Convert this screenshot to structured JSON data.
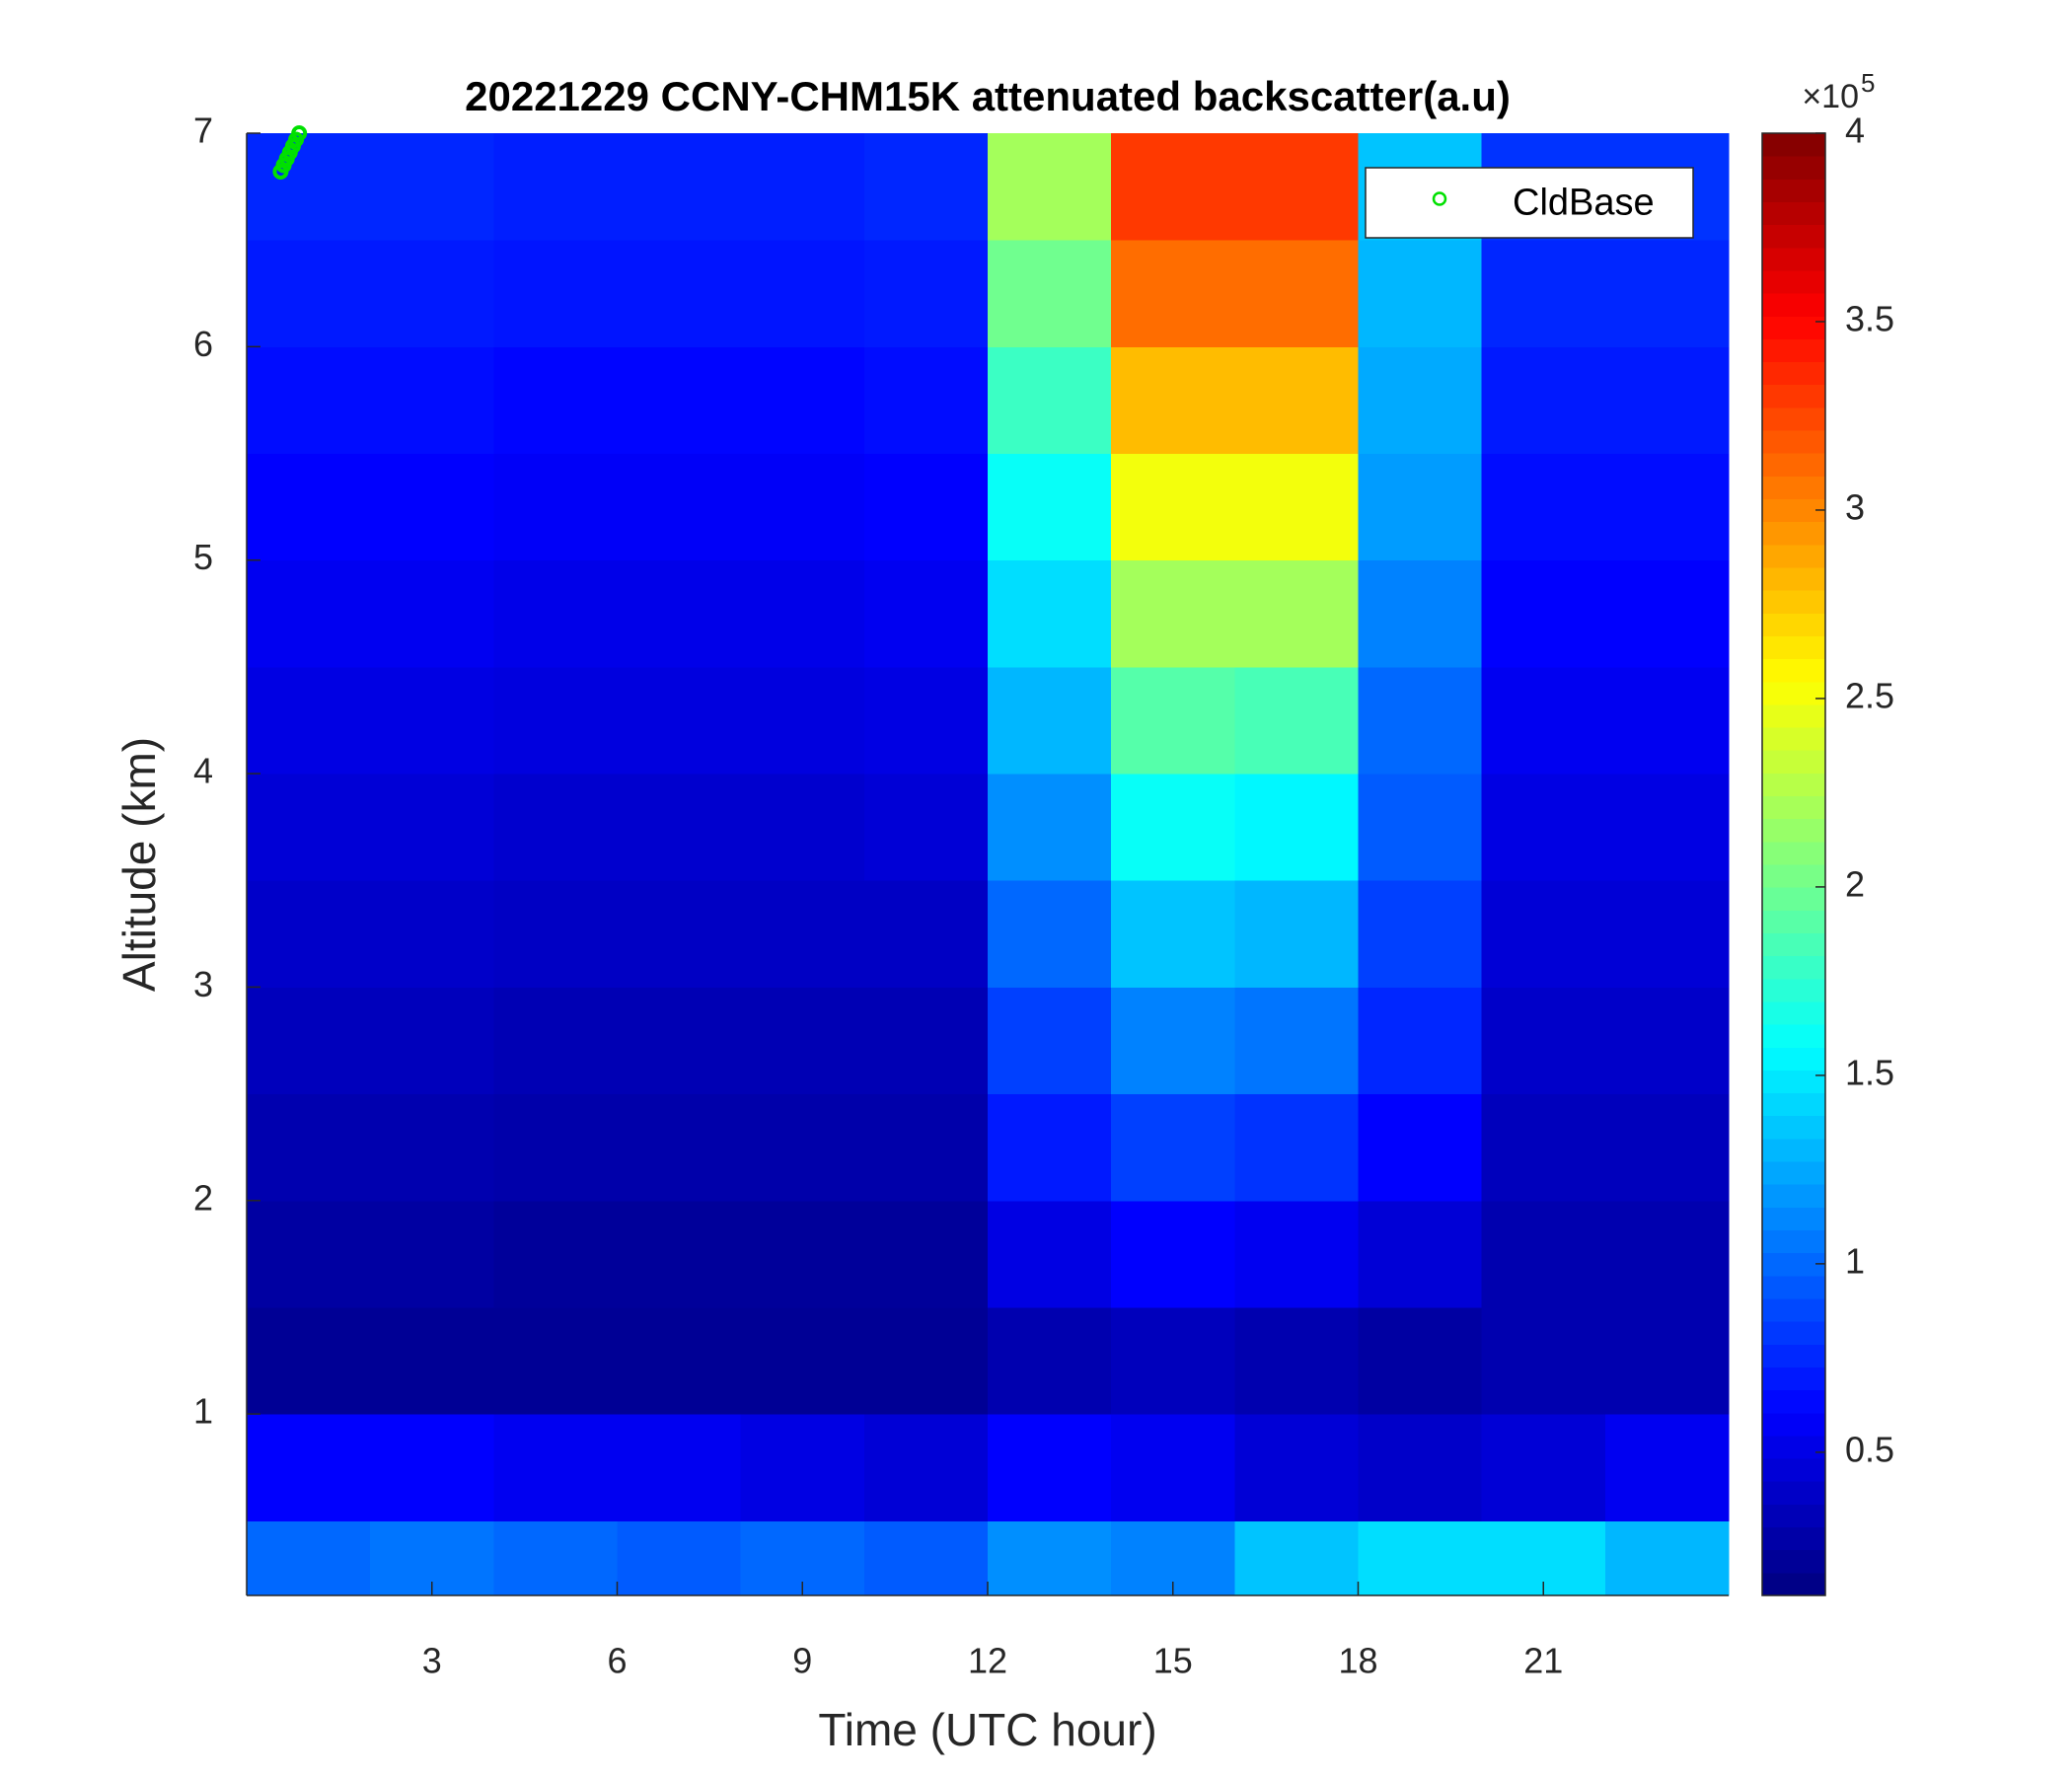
{
  "chart_data": {
    "type": "heatmap",
    "title": "20221229 CCNY-CHM15K attenuated backscatter(a.u)",
    "x_label": "Time (UTC hour)",
    "y_label": "Altitude (km)",
    "xlim": [
      0,
      24
    ],
    "xticks": [
      3,
      6,
      9,
      12,
      15,
      18,
      21
    ],
    "ylim": [
      0.15,
      7
    ],
    "yticks": [
      1,
      2,
      3,
      4,
      5,
      6,
      7
    ],
    "x_bins": [
      0,
      2,
      4,
      6,
      8,
      10,
      12,
      14,
      16,
      18,
      20,
      22,
      24
    ],
    "y_bins": [
      0.15,
      0.5,
      1,
      1.5,
      2,
      2.5,
      3,
      3.5,
      4,
      4.5,
      5,
      5.5,
      6,
      6.5,
      7
    ],
    "z": [
      [
        1.0,
        1.05,
        1.0,
        0.95,
        1.0,
        0.95,
        1.15,
        1.1,
        1.35,
        1.45,
        1.45,
        1.3
      ],
      [
        0.6,
        0.6,
        0.55,
        0.55,
        0.5,
        0.45,
        0.6,
        0.55,
        0.45,
        0.4,
        0.45,
        0.55
      ],
      [
        0.2,
        0.2,
        0.2,
        0.2,
        0.2,
        0.2,
        0.3,
        0.35,
        0.3,
        0.25,
        0.3,
        0.3
      ],
      [
        0.25,
        0.25,
        0.22,
        0.22,
        0.22,
        0.22,
        0.5,
        0.6,
        0.55,
        0.45,
        0.3,
        0.3
      ],
      [
        0.3,
        0.3,
        0.28,
        0.28,
        0.28,
        0.28,
        0.7,
        0.85,
        0.8,
        0.6,
        0.35,
        0.35
      ],
      [
        0.35,
        0.35,
        0.32,
        0.32,
        0.32,
        0.32,
        0.85,
        1.1,
        1.05,
        0.75,
        0.4,
        0.4
      ],
      [
        0.4,
        0.4,
        0.38,
        0.38,
        0.38,
        0.38,
        1.0,
        1.35,
        1.3,
        0.85,
        0.45,
        0.45
      ],
      [
        0.45,
        0.45,
        0.42,
        0.42,
        0.42,
        0.45,
        1.15,
        1.6,
        1.55,
        0.95,
        0.5,
        0.5
      ],
      [
        0.5,
        0.5,
        0.48,
        0.48,
        0.48,
        0.5,
        1.3,
        1.9,
        1.85,
        1.0,
        0.55,
        0.55
      ],
      [
        0.55,
        0.55,
        0.52,
        0.52,
        0.52,
        0.55,
        1.45,
        2.2,
        2.2,
        1.1,
        0.6,
        0.6
      ],
      [
        0.6,
        0.6,
        0.58,
        0.58,
        0.58,
        0.6,
        1.6,
        2.5,
        2.5,
        1.2,
        0.65,
        0.65
      ],
      [
        0.65,
        0.65,
        0.62,
        0.62,
        0.62,
        0.65,
        1.8,
        2.8,
        2.8,
        1.25,
        0.7,
        0.7
      ],
      [
        0.7,
        0.7,
        0.68,
        0.68,
        0.68,
        0.7,
        2.0,
        3.1,
        3.1,
        1.3,
        0.75,
        0.75
      ],
      [
        0.75,
        0.75,
        0.72,
        0.72,
        0.72,
        0.75,
        2.2,
        3.3,
        3.3,
        1.35,
        0.8,
        0.8
      ]
    ],
    "colormap": "jet",
    "clim": [
      0.12,
      4
    ],
    "cticks": [
      0.5,
      1,
      1.5,
      2,
      2.5,
      3,
      3.5,
      4
    ],
    "colorbar_multiplier": {
      "base": "×10",
      "exponent": "5"
    },
    "series": [
      {
        "name": "CldBase",
        "color": "#00e000",
        "x": [
          0.55,
          0.6,
          0.65,
          0.7,
          0.75,
          0.8,
          0.85
        ],
        "values": [
          6.82,
          6.85,
          6.88,
          6.91,
          6.94,
          6.97,
          7.0
        ]
      }
    ],
    "legend": "northeast"
  }
}
